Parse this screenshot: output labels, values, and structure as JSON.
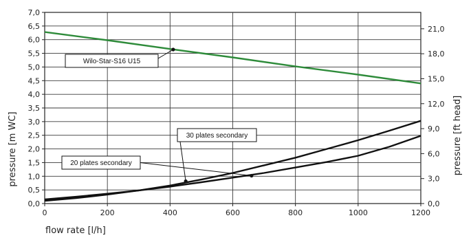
{
  "chart_data": {
    "type": "line",
    "title": "",
    "xlabel": "flow rate [l/h]",
    "ylabel": "pressure [m WC]",
    "y2label": "pressure [ft head]",
    "xlim": [
      0,
      1200
    ],
    "ylim": [
      0,
      7
    ],
    "y2lim": [
      0,
      22.97
    ],
    "x_ticks": [
      0,
      200,
      400,
      600,
      800,
      1000,
      1200
    ],
    "x_tick_labels": [
      "0",
      "200",
      "400",
      "600",
      "800",
      "1000",
      "1200"
    ],
    "y_ticks": [
      0,
      0.5,
      1,
      1.5,
      2,
      2.5,
      3,
      3.5,
      4,
      4.5,
      5,
      5.5,
      6,
      6.5,
      7
    ],
    "y_tick_labels": [
      "0,0",
      "0,5",
      "1,0",
      "1,5",
      "2,0",
      "2,5",
      "3,0",
      "3,5",
      "4,0",
      "4,5",
      "5,0",
      "5,5",
      "6,0",
      "6,5",
      "7,0"
    ],
    "y2_ticks": [
      0,
      3,
      6,
      9,
      12,
      15,
      18,
      21
    ],
    "y2_tick_labels": [
      "0,0",
      "3,0",
      "6,0",
      "9,0",
      "12,0",
      "15,0",
      "18,0",
      "21,0"
    ],
    "grid": true,
    "series": [
      {
        "name": "Wilo-Star-S16 U15",
        "color": "#2e8b3a",
        "x": [
          0,
          200,
          400,
          600,
          800,
          1000,
          1200
        ],
        "y": [
          6.28,
          5.98,
          5.66,
          5.35,
          5.02,
          4.72,
          4.4
        ]
      },
      {
        "name": "30 plates secondary",
        "color": "#111111",
        "x": [
          0,
          100,
          200,
          300,
          400,
          500,
          600,
          700,
          800,
          900,
          1000,
          1100,
          1200
        ],
        "y": [
          0.1,
          0.2,
          0.33,
          0.48,
          0.66,
          0.88,
          1.12,
          1.4,
          1.68,
          2.0,
          2.32,
          2.67,
          3.03
        ]
      },
      {
        "name": "20 plates secondary",
        "color": "#111111",
        "x": [
          0,
          100,
          200,
          300,
          400,
          500,
          600,
          700,
          800,
          900,
          1000,
          1100,
          1200
        ],
        "y": [
          0.15,
          0.25,
          0.36,
          0.48,
          0.62,
          0.78,
          0.95,
          1.12,
          1.32,
          1.52,
          1.75,
          2.08,
          2.48
        ]
      }
    ],
    "annotations": [
      {
        "text": "Wilo-Star-S16 U15",
        "series": 0,
        "point_x": 410,
        "point_y": 5.64
      },
      {
        "text": "30 plates secondary",
        "series": 1,
        "point_x": 450,
        "point_y": 0.82
      },
      {
        "text": "20 plates secondary",
        "series": 2,
        "point_x": 660,
        "point_y": 1.02
      }
    ]
  }
}
